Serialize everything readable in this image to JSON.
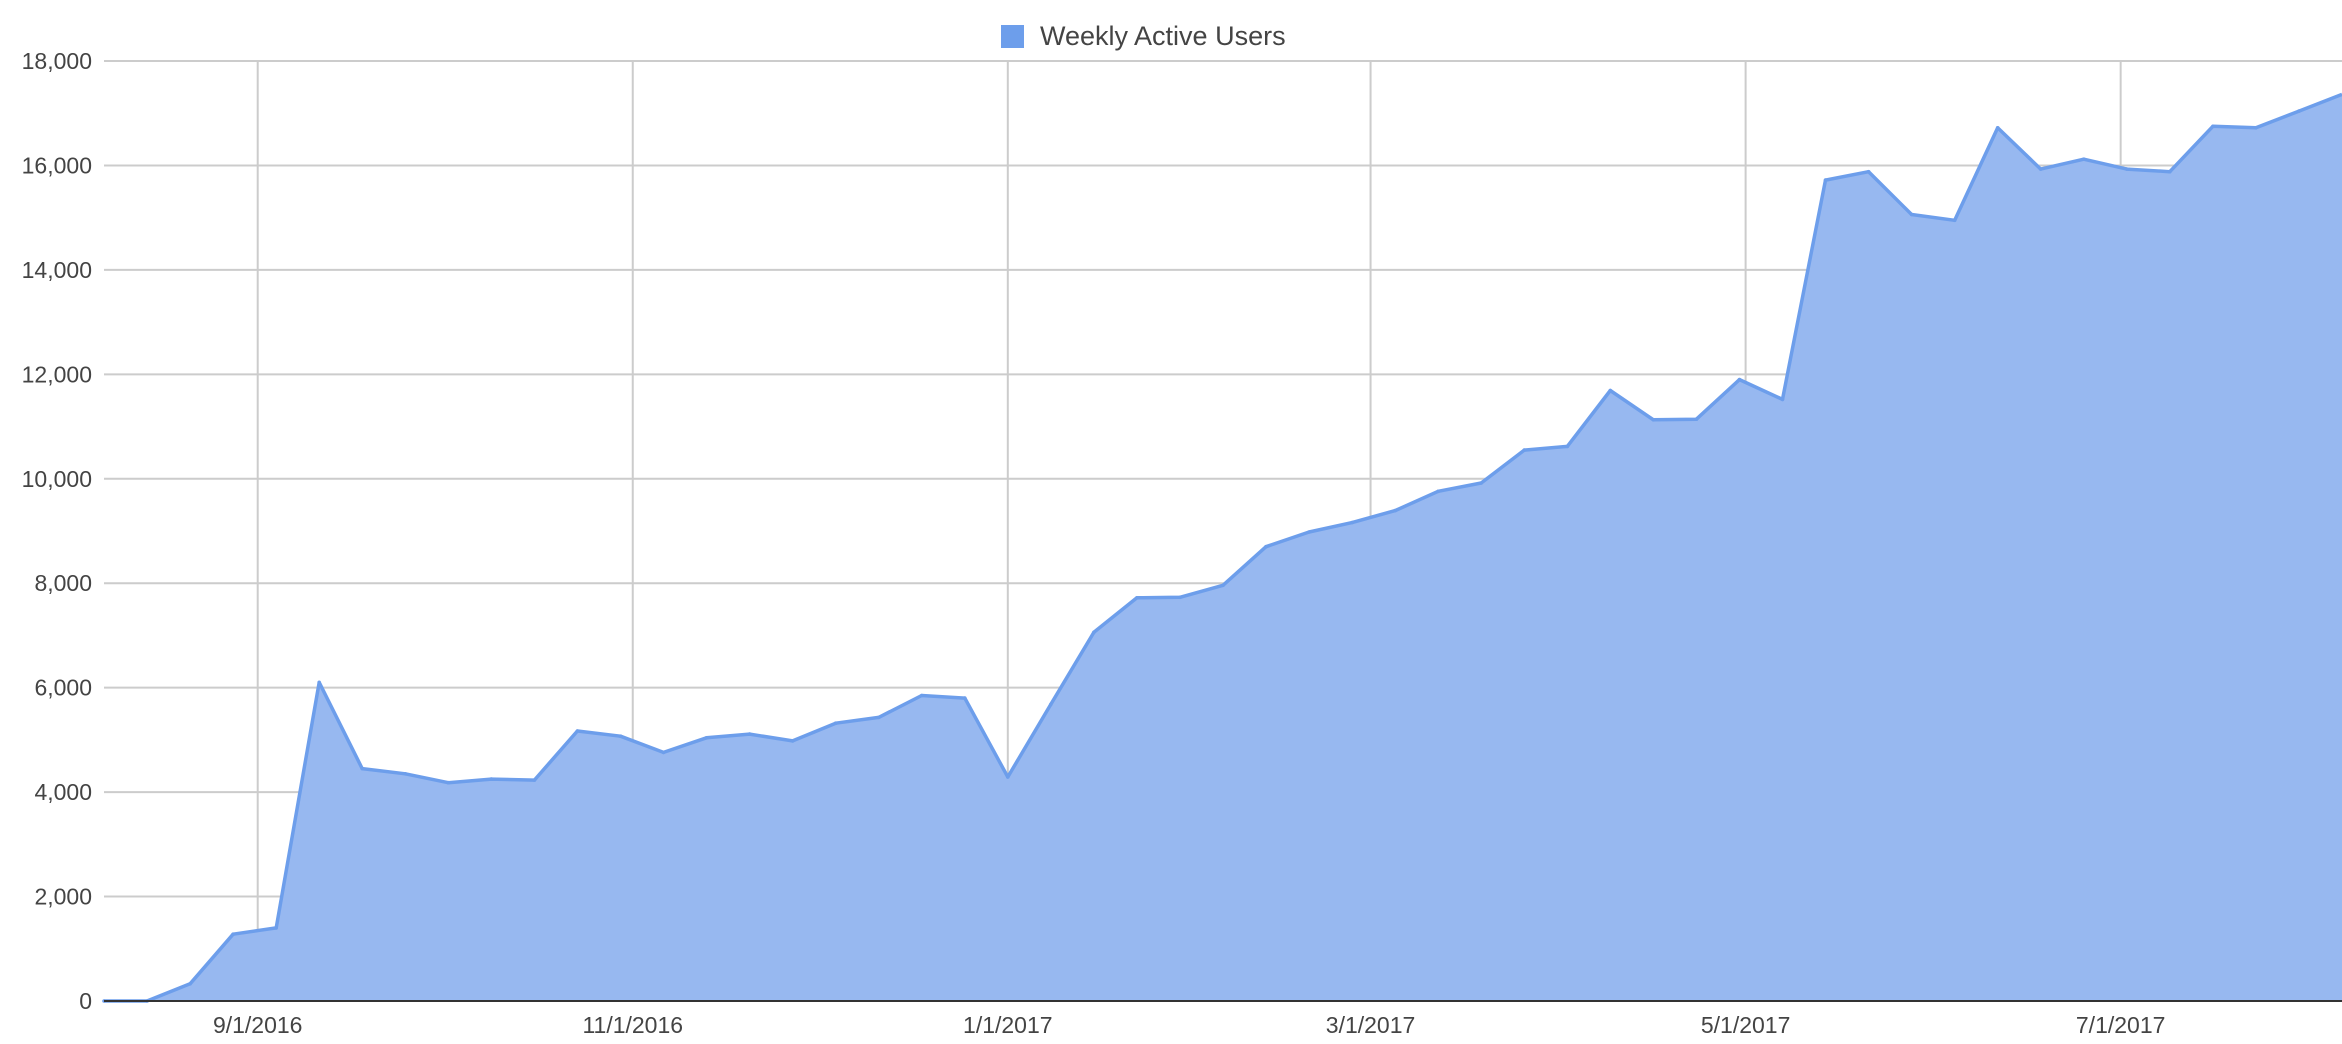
{
  "chart_data": {
    "type": "area",
    "title": "",
    "xlabel": "",
    "ylabel": "",
    "legend": {
      "position": "top",
      "entries": [
        "Weekly Active Users"
      ]
    },
    "grid": true,
    "xlim": [
      "2016-08-07",
      "2017-08-06"
    ],
    "ylim": [
      0,
      18000
    ],
    "y_ticks": [
      0,
      2000,
      4000,
      6000,
      8000,
      10000,
      12000,
      14000,
      16000,
      18000
    ],
    "y_tick_labels": [
      "0",
      "2,000",
      "4,000",
      "6,000",
      "8,000",
      "10,000",
      "12,000",
      "14,000",
      "16,000",
      "18,000"
    ],
    "x_ticks": [
      "2016-09-01",
      "2016-11-01",
      "2017-01-01",
      "2017-03-01",
      "2017-05-01",
      "2017-07-01"
    ],
    "x_tick_labels": [
      "9/1/2016",
      "11/1/2016",
      "1/1/2017",
      "3/1/2017",
      "5/1/2017",
      "7/1/2017"
    ],
    "colors": {
      "fill": "#97b8f0",
      "line": "#6d9eeb",
      "legend_swatch": "#6d9eeb",
      "grid": "#cccccc",
      "baseline": "#333333"
    },
    "series": [
      {
        "name": "Weekly Active Users",
        "x": [
          "2016-08-07",
          "2016-08-14",
          "2016-08-21",
          "2016-08-28",
          "2016-09-04",
          "2016-09-11",
          "2016-09-18",
          "2016-09-25",
          "2016-10-02",
          "2016-10-09",
          "2016-10-16",
          "2016-10-23",
          "2016-10-30",
          "2016-11-06",
          "2016-11-13",
          "2016-11-20",
          "2016-11-27",
          "2016-12-04",
          "2016-12-11",
          "2016-12-18",
          "2016-12-25",
          "2017-01-01",
          "2017-01-08",
          "2017-01-15",
          "2017-01-22",
          "2017-01-29",
          "2017-02-05",
          "2017-02-12",
          "2017-02-19",
          "2017-02-26",
          "2017-03-05",
          "2017-03-12",
          "2017-03-19",
          "2017-03-26",
          "2017-04-02",
          "2017-04-09",
          "2017-04-16",
          "2017-04-23",
          "2017-04-30",
          "2017-05-07",
          "2017-05-14",
          "2017-05-21",
          "2017-05-28",
          "2017-06-04",
          "2017-06-11",
          "2017-06-18",
          "2017-06-25",
          "2017-07-02",
          "2017-07-09",
          "2017-07-16",
          "2017-07-23",
          "2017-07-30"
        ],
        "values": [
          0,
          0,
          330,
          1280,
          1400,
          6100,
          4450,
          4350,
          4180,
          4250,
          4230,
          5170,
          5070,
          4760,
          5040,
          5110,
          4980,
          5320,
          5430,
          5850,
          5800,
          4290,
          5680,
          7060,
          7720,
          7730,
          7960,
          8700,
          8980,
          9160,
          9390,
          9760,
          9920,
          10550,
          10620,
          11690,
          11130,
          11140,
          11900,
          11520,
          15720,
          15880,
          15060,
          14950,
          16720,
          15930,
          16120,
          15930,
          15880,
          16750,
          16720,
          17040
        ]
      }
    ]
  }
}
